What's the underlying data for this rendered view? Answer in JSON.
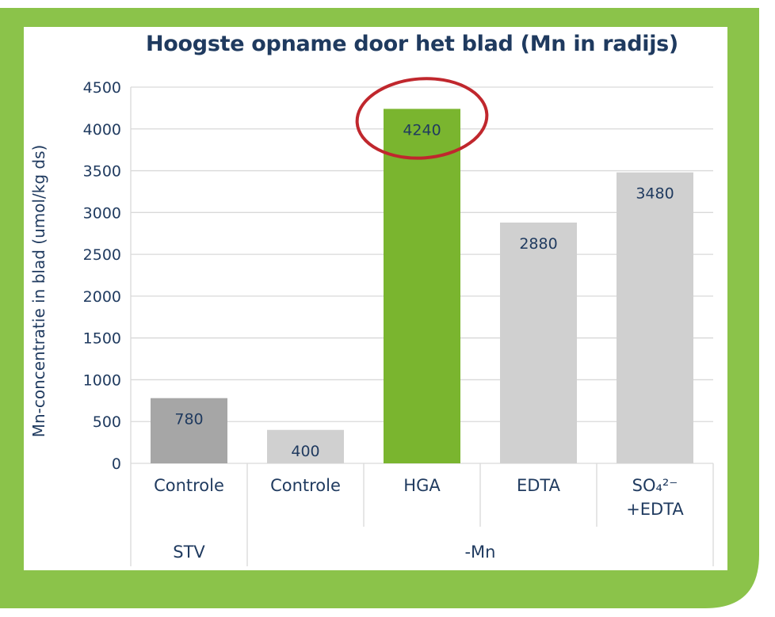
{
  "chart_data": {
    "type": "bar",
    "title": "Hoogste opname door het blad (Mn in radijs)",
    "ylabel": "Mn-concentratie in blad (umol/kg ds)",
    "xlabel": "",
    "ylim": [
      0,
      4500
    ],
    "yticks": [
      "0",
      "500",
      "1000",
      "1500",
      "2000",
      "2500",
      "3000",
      "3500",
      "4000",
      "4500"
    ],
    "grid": true,
    "categories": [
      "Controle",
      "Controle",
      "HGA",
      "EDTA",
      "SO₄²⁻ +EDTA"
    ],
    "values": [
      780,
      400,
      4240,
      2880,
      3480
    ],
    "value_labels": [
      "780",
      "400",
      "4240",
      "2880",
      "3480"
    ],
    "bar_colors": [
      "#a6a6a6",
      "#d0d0d0",
      "#7ab52f",
      "#d0d0d0",
      "#d0d0d0"
    ],
    "category_lines": [
      [
        "Controle"
      ],
      [
        "Controle"
      ],
      [
        "HGA"
      ],
      [
        "EDTA"
      ],
      [
        "SO₄²⁻",
        "+EDTA"
      ]
    ],
    "groups": [
      {
        "label": "STV",
        "span": [
          0,
          0
        ]
      },
      {
        "label": "-Mn",
        "span": [
          1,
          4
        ]
      }
    ],
    "highlight": {
      "category_index": 2,
      "color": "#c0272d"
    }
  },
  "colors": {
    "frame_green": "#8bc34a",
    "title": "#1f3a5f",
    "text": "#1f3a5f",
    "grid": "#d9d9d9"
  }
}
